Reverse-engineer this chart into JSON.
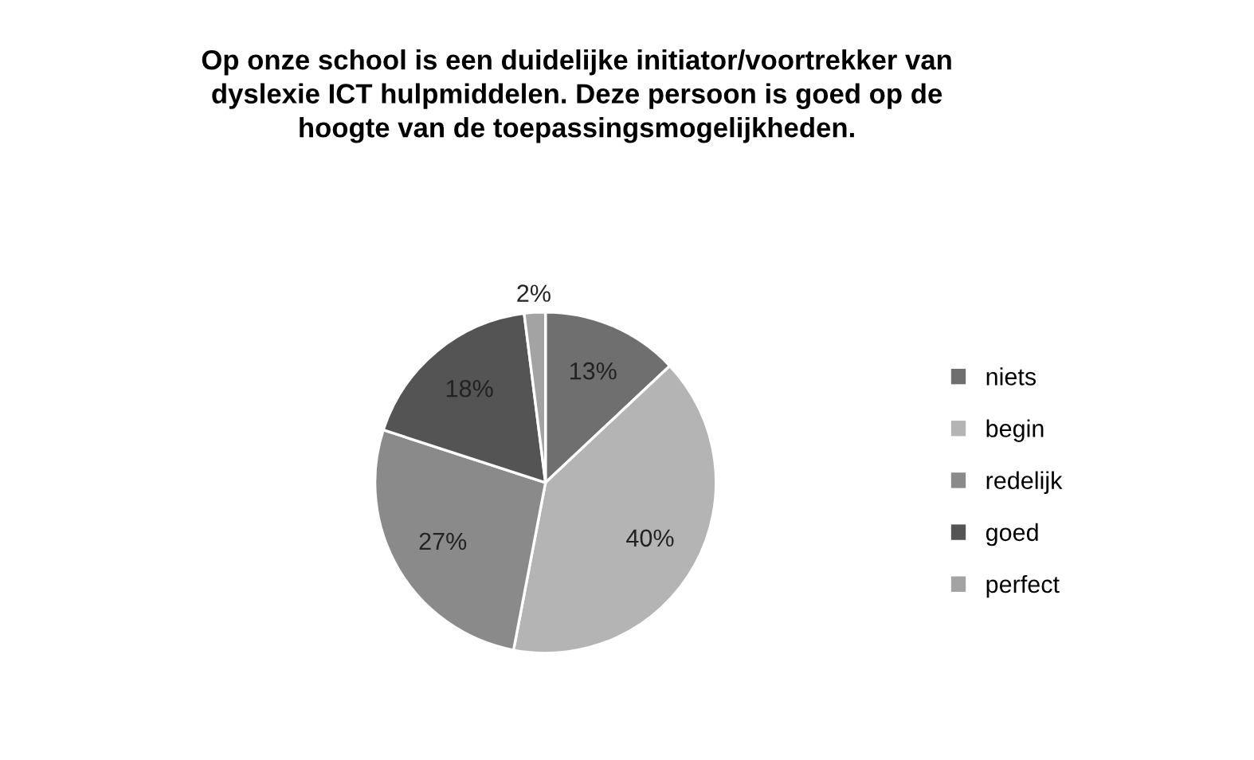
{
  "chart_data": {
    "type": "pie",
    "title": "Op onze school is een duidelijke initiator/voortrekker van\ndyslexie ICT hulpmiddelen. Deze persoon is goed op de\nhoogte van de toepassingsmogelijkheden.",
    "categories": [
      "niets",
      "begin",
      "redelijk",
      "goed",
      "perfect"
    ],
    "values": [
      13,
      40,
      27,
      18,
      2
    ],
    "colors": [
      "#6f6f6f",
      "#b4b4b4",
      "#8a8a8a",
      "#545454",
      "#a3a3a3"
    ],
    "value_labels": [
      "13%",
      "40%",
      "27%",
      "18%",
      "2%"
    ],
    "legend": "right"
  }
}
